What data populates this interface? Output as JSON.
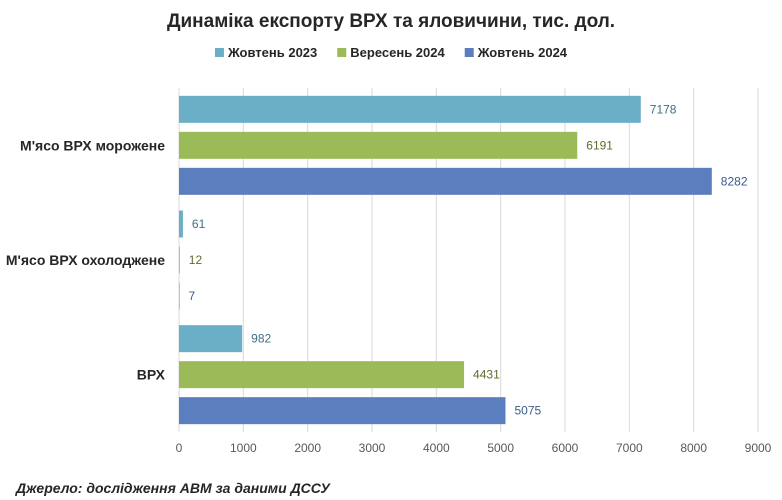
{
  "chart_data": {
    "type": "bar",
    "orientation": "horizontal",
    "title": "Динаміка експорту ВРХ та яловичини, тис. дол.",
    "categories": [
      "М'ясо ВРХ морожене",
      "М'ясо ВРХ охолоджене",
      "ВРХ"
    ],
    "series": [
      {
        "name": "Жовтень 2023",
        "color": "#6aafc6",
        "label_color": "#3d6f84",
        "values": [
          7178,
          61,
          982
        ]
      },
      {
        "name": "Вересень 2024",
        "color": "#9bbb59",
        "label_color": "#5f6b2c",
        "values": [
          6191,
          12,
          4431
        ]
      },
      {
        "name": "Жовтень 2024",
        "color": "#5b7fbe",
        "label_color": "#3a5a8c",
        "values": [
          8282,
          7,
          5075
        ]
      }
    ],
    "xlim": [
      0,
      9000
    ],
    "x_ticks": [
      0,
      1000,
      2000,
      3000,
      4000,
      5000,
      6000,
      7000,
      8000,
      9000
    ],
    "legend_position": "top",
    "grid": true
  },
  "source_note": "Джерело: дослідження АВМ за даними ДССУ"
}
